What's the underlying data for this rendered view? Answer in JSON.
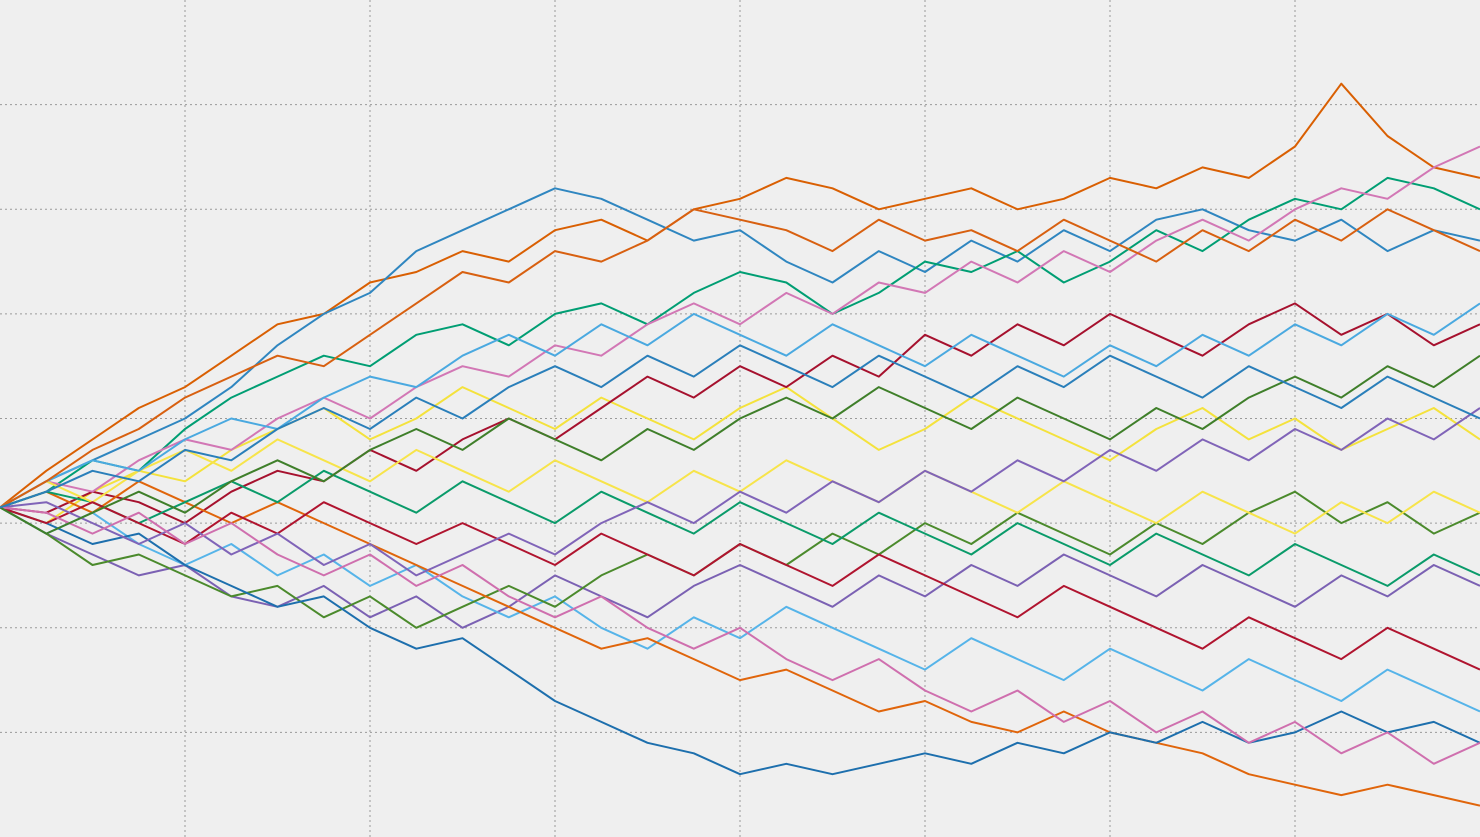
{
  "chart_data": {
    "type": "line",
    "grid": true,
    "xlim": [
      0,
      8
    ],
    "ylim": [
      0,
      8
    ],
    "xticks": [
      1,
      2,
      3,
      4,
      5,
      6,
      7
    ],
    "yticks": [
      1,
      2,
      3,
      4,
      5,
      6,
      7
    ],
    "x": [
      0,
      0.25,
      0.5,
      0.75,
      1,
      1.25,
      1.5,
      1.75,
      2,
      2.25,
      2.5,
      2.75,
      3,
      3.25,
      3.5,
      3.75,
      4,
      4.25,
      4.5,
      4.75,
      5,
      5.25,
      5.5,
      5.75,
      6,
      6.25,
      6.5,
      6.75,
      7,
      7.25,
      7.5,
      7.75,
      8
    ],
    "series": [
      {
        "color": "#d95f02",
        "values": [
          3.15,
          3.5,
          3.8,
          4.1,
          4.3,
          4.6,
          4.9,
          5.0,
          5.3,
          5.4,
          5.6,
          5.5,
          5.8,
          5.9,
          5.7,
          6.0,
          6.1,
          6.3,
          6.2,
          6.0,
          6.1,
          6.2,
          6.0,
          6.1,
          6.3,
          6.2,
          6.4,
          6.3,
          6.6,
          7.2,
          6.7,
          6.4,
          6.3
        ]
      },
      {
        "color": "#2f86c0",
        "values": [
          3.15,
          3.4,
          3.6,
          3.8,
          4.0,
          4.3,
          4.7,
          5.0,
          5.2,
          5.6,
          5.8,
          6.0,
          6.2,
          6.1,
          5.9,
          5.7,
          5.8,
          5.5,
          5.3,
          5.6,
          5.4,
          5.7,
          5.5,
          5.8,
          5.6,
          5.9,
          6.0,
          5.8,
          5.7,
          5.9,
          5.6,
          5.8,
          5.7
        ]
      },
      {
        "color": "#009e73",
        "values": [
          3.15,
          3.3,
          3.6,
          3.5,
          3.9,
          4.2,
          4.4,
          4.6,
          4.5,
          4.8,
          4.9,
          4.7,
          5.0,
          5.1,
          4.9,
          5.2,
          5.4,
          5.3,
          5.0,
          5.2,
          5.5,
          5.4,
          5.6,
          5.3,
          5.5,
          5.8,
          5.6,
          5.9,
          6.1,
          6.0,
          6.3,
          6.2,
          6.0
        ]
      },
      {
        "color": "#f4e23c",
        "values": [
          3.15,
          3.0,
          3.3,
          3.5,
          3.4,
          3.7,
          3.9,
          4.1,
          3.8,
          4.0,
          4.3,
          4.1,
          3.9,
          4.2,
          4.0,
          3.8,
          4.1,
          4.3,
          4.0,
          3.7,
          3.9,
          4.2,
          4.0,
          3.8,
          3.6,
          3.9,
          4.1,
          3.8,
          4.0,
          3.7,
          3.9,
          4.1,
          3.8
        ]
      },
      {
        "color": "#a6112e",
        "values": [
          3.15,
          3.1,
          3.3,
          3.2,
          3.0,
          3.3,
          3.5,
          3.4,
          3.7,
          3.5,
          3.8,
          4.0,
          3.8,
          4.1,
          4.4,
          4.2,
          4.5,
          4.3,
          4.6,
          4.4,
          4.8,
          4.6,
          4.9,
          4.7,
          5.0,
          4.8,
          4.6,
          4.9,
          5.1,
          4.8,
          5.0,
          4.7,
          4.9
        ]
      },
      {
        "color": "#7b61b3",
        "values": [
          3.15,
          2.9,
          2.7,
          2.5,
          2.6,
          2.3,
          2.2,
          2.4,
          2.1,
          2.3,
          2.0,
          2.2,
          2.5,
          2.3,
          2.1,
          2.4,
          2.6,
          2.4,
          2.2,
          2.5,
          2.3,
          2.6,
          2.4,
          2.7,
          2.5,
          2.3,
          2.6,
          2.4,
          2.2,
          2.5,
          2.3,
          2.6,
          2.4
        ]
      },
      {
        "color": "#d277b5",
        "values": [
          3.15,
          3.4,
          3.3,
          3.6,
          3.8,
          3.7,
          4.0,
          4.2,
          4.0,
          4.3,
          4.5,
          4.4,
          4.7,
          4.6,
          4.9,
          5.1,
          4.9,
          5.2,
          5.0,
          5.3,
          5.2,
          5.5,
          5.3,
          5.6,
          5.4,
          5.7,
          5.9,
          5.7,
          6.0,
          6.2,
          6.1,
          6.4,
          6.6
        ]
      },
      {
        "color": "#56b4e9",
        "values": [
          3.15,
          2.9,
          3.1,
          2.8,
          2.6,
          2.8,
          2.5,
          2.7,
          2.4,
          2.6,
          2.3,
          2.1,
          2.3,
          2.0,
          1.8,
          2.1,
          1.9,
          2.2,
          2.0,
          1.8,
          1.6,
          1.9,
          1.7,
          1.5,
          1.8,
          1.6,
          1.4,
          1.7,
          1.5,
          1.3,
          1.6,
          1.4,
          1.2
        ]
      },
      {
        "color": "#4b8a2c",
        "values": [
          3.15,
          2.9,
          2.6,
          2.7,
          2.5,
          2.3,
          2.4,
          2.1,
          2.3,
          2.0,
          2.2,
          2.4,
          2.2,
          2.5,
          2.7,
          2.5,
          2.8,
          2.6,
          2.9,
          2.7,
          3.0,
          2.8,
          3.1,
          2.9,
          2.7,
          3.0,
          2.8,
          3.1,
          3.3,
          3.0,
          3.2,
          2.9,
          3.1
        ]
      },
      {
        "color": "#e0650b",
        "values": [
          3.15,
          3.3,
          3.1,
          3.4,
          3.2,
          3.0,
          3.2,
          3.0,
          2.8,
          2.6,
          2.4,
          2.2,
          2.0,
          1.8,
          1.9,
          1.7,
          1.5,
          1.6,
          1.4,
          1.2,
          1.3,
          1.1,
          1.0,
          1.2,
          1.0,
          0.9,
          0.8,
          0.6,
          0.5,
          0.4,
          0.5,
          0.4,
          0.3
        ]
      },
      {
        "color": "#1d6fad",
        "values": [
          3.15,
          3.0,
          2.8,
          2.9,
          2.6,
          2.4,
          2.2,
          2.3,
          2.0,
          1.8,
          1.9,
          1.6,
          1.3,
          1.1,
          0.9,
          0.8,
          0.6,
          0.7,
          0.6,
          0.7,
          0.8,
          0.7,
          0.9,
          0.8,
          1.0,
          0.9,
          1.1,
          0.9,
          1.0,
          1.2,
          1.0,
          1.1,
          0.9
        ]
      },
      {
        "color": "#0a9b6a",
        "values": [
          3.15,
          3.3,
          3.2,
          3.0,
          3.2,
          3.4,
          3.2,
          3.5,
          3.3,
          3.1,
          3.4,
          3.2,
          3.0,
          3.3,
          3.1,
          2.9,
          3.2,
          3.0,
          2.8,
          3.1,
          2.9,
          2.7,
          3.0,
          2.8,
          2.6,
          2.9,
          2.7,
          2.5,
          2.8,
          2.6,
          2.4,
          2.7,
          2.5
        ]
      },
      {
        "color": "#f7e44a",
        "values": [
          3.15,
          3.4,
          3.2,
          3.5,
          3.7,
          3.5,
          3.8,
          3.6,
          3.4,
          3.7,
          3.5,
          3.3,
          3.6,
          3.4,
          3.2,
          3.5,
          3.3,
          3.6,
          3.4,
          3.2,
          3.5,
          3.3,
          3.1,
          3.4,
          3.2,
          3.0,
          3.3,
          3.1,
          2.9,
          3.2,
          3.0,
          3.3,
          3.1
        ]
      },
      {
        "color": "#b0142f",
        "values": [
          3.15,
          3.0,
          3.2,
          3.0,
          2.8,
          3.1,
          2.9,
          3.2,
          3.0,
          2.8,
          3.0,
          2.8,
          2.6,
          2.9,
          2.7,
          2.5,
          2.8,
          2.6,
          2.4,
          2.7,
          2.5,
          2.3,
          2.1,
          2.4,
          2.2,
          2.0,
          1.8,
          2.1,
          1.9,
          1.7,
          2.0,
          1.8,
          1.6
        ]
      },
      {
        "color": "#8064b8",
        "values": [
          3.15,
          3.2,
          3.0,
          2.8,
          3.0,
          2.7,
          2.9,
          2.6,
          2.8,
          2.5,
          2.7,
          2.9,
          2.7,
          3.0,
          3.2,
          3.0,
          3.3,
          3.1,
          3.4,
          3.2,
          3.5,
          3.3,
          3.6,
          3.4,
          3.7,
          3.5,
          3.8,
          3.6,
          3.9,
          3.7,
          4.0,
          3.8,
          4.1
        ]
      },
      {
        "color": "#cf6fae",
        "values": [
          3.15,
          3.1,
          2.9,
          3.1,
          2.8,
          3.0,
          2.7,
          2.5,
          2.7,
          2.4,
          2.6,
          2.3,
          2.1,
          2.3,
          2.0,
          1.8,
          2.0,
          1.7,
          1.5,
          1.7,
          1.4,
          1.2,
          1.4,
          1.1,
          1.3,
          1.0,
          1.2,
          0.9,
          1.1,
          0.8,
          1.0,
          0.7,
          0.9
        ]
      },
      {
        "color": "#4aa9e0",
        "values": [
          3.15,
          3.4,
          3.6,
          3.5,
          3.8,
          4.0,
          3.9,
          4.2,
          4.4,
          4.3,
          4.6,
          4.8,
          4.6,
          4.9,
          4.7,
          5.0,
          4.8,
          4.6,
          4.9,
          4.7,
          4.5,
          4.8,
          4.6,
          4.4,
          4.7,
          4.5,
          4.8,
          4.6,
          4.9,
          4.7,
          5.0,
          4.8,
          5.1
        ]
      },
      {
        "color": "#3f7f2a",
        "values": [
          3.15,
          2.9,
          3.1,
          3.3,
          3.1,
          3.4,
          3.6,
          3.4,
          3.7,
          3.9,
          3.7,
          4.0,
          3.8,
          3.6,
          3.9,
          3.7,
          4.0,
          4.2,
          4.0,
          4.3,
          4.1,
          3.9,
          4.2,
          4.0,
          3.8,
          4.1,
          3.9,
          4.2,
          4.4,
          4.2,
          4.5,
          4.3,
          4.6
        ]
      },
      {
        "color": "#d86010",
        "values": [
          3.15,
          3.4,
          3.7,
          3.9,
          4.2,
          4.4,
          4.6,
          4.5,
          4.8,
          5.1,
          5.4,
          5.3,
          5.6,
          5.5,
          5.7,
          6.0,
          5.9,
          5.8,
          5.6,
          5.9,
          5.7,
          5.8,
          5.6,
          5.9,
          5.7,
          5.5,
          5.8,
          5.6,
          5.9,
          5.7,
          6.0,
          5.8,
          5.6
        ]
      },
      {
        "color": "#2a7fba",
        "values": [
          3.15,
          3.3,
          3.5,
          3.4,
          3.7,
          3.6,
          3.9,
          4.1,
          3.9,
          4.2,
          4.0,
          4.3,
          4.5,
          4.3,
          4.6,
          4.4,
          4.7,
          4.5,
          4.3,
          4.6,
          4.4,
          4.2,
          4.5,
          4.3,
          4.6,
          4.4,
          4.2,
          4.5,
          4.3,
          4.1,
          4.4,
          4.2,
          4.0
        ]
      }
    ]
  }
}
